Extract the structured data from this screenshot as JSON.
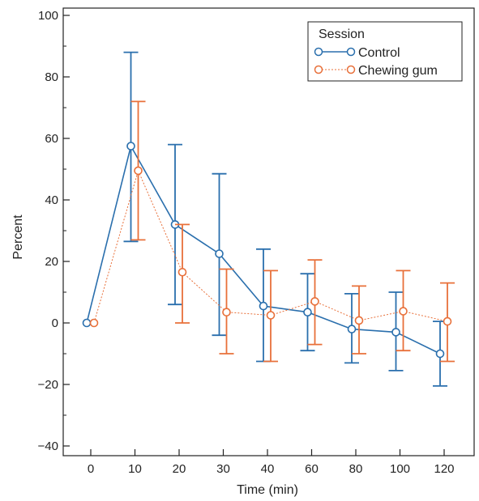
{
  "chart_data": {
    "type": "line",
    "xlabel": "Time (min)",
    "ylabel": "Percent",
    "categories": [
      "0",
      "10",
      "20",
      "30",
      "40",
      "60",
      "80",
      "100",
      "120"
    ],
    "ylim": [
      -40,
      100
    ],
    "yticks": [
      -40,
      -20,
      0,
      20,
      40,
      60,
      80,
      100
    ],
    "grid": false,
    "legend": {
      "title": "Session",
      "position": "top-right"
    },
    "series": [
      {
        "name": "Control",
        "color": "#2a6fad",
        "line_style": "solid",
        "values": [
          0,
          57.5,
          32,
          22.5,
          5.5,
          3.5,
          -2,
          -3,
          -10
        ],
        "err_upper": [
          null,
          88,
          58,
          48.5,
          24,
          16,
          9.5,
          10,
          0.5
        ],
        "err_lower": [
          null,
          26.5,
          6,
          -4,
          -12.5,
          -9,
          -13,
          -15.5,
          -20.5
        ]
      },
      {
        "name": "Chewing gum",
        "color": "#e8703a",
        "line_style": "dotted",
        "values": [
          0,
          49.5,
          16.5,
          3.5,
          2.5,
          7,
          0.8,
          3.8,
          0.5
        ],
        "err_upper": [
          null,
          72,
          32,
          17.5,
          17,
          20.5,
          12,
          17,
          13
        ],
        "err_lower": [
          null,
          27,
          0,
          -10,
          -12.5,
          -7,
          -10,
          -9,
          -12.5
        ]
      }
    ]
  }
}
